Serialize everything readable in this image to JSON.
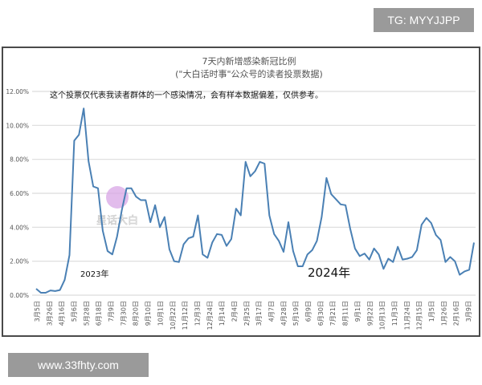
{
  "watermarks": {
    "top_right": "TG: MYYJJPP",
    "bottom_left": "www.33fhty.com",
    "logo_text": "星话大白"
  },
  "chart_data": {
    "type": "line",
    "title": "7天内新增感染新冠比例",
    "subtitle": "(\"大白话时事\"公众号的读者投票数据)",
    "note": "这个投票仅代表我读者群体的一个感染情况，会有样本数据偏差，仅供参考。",
    "annotations": [
      "2023年",
      "2024年"
    ],
    "ylim": [
      0,
      12
    ],
    "y_ticks": [
      "0.00%",
      "2.00%",
      "4.00%",
      "6.00%",
      "8.00%",
      "10.00%",
      "12.00%"
    ],
    "x_ticks": [
      "3月5日",
      "3月26日",
      "4月16日",
      "5月6日",
      "5月28日",
      "6月18日",
      "7月9日",
      "7月30日",
      "8月20日",
      "9月10日",
      "10月1日",
      "10月22日",
      "11月12日",
      "12月3日",
      "12月24日",
      "1月14日",
      "2月4日",
      "2月25日",
      "3月17日",
      "4月7日",
      "4月28日",
      "5月19日",
      "6月9日",
      "6月30日",
      "7月21日",
      "8月11日",
      "9月1日",
      "9月22日",
      "10月13日",
      "11月3日",
      "11月24日",
      "12月15日",
      "1月5日",
      "1月26日",
      "2月16日",
      "3月9日"
    ],
    "grid": true,
    "line_color": "#4a80b4",
    "series": [
      {
        "values": [
          0.38,
          0.14,
          0.14,
          0.28,
          0.24,
          0.3,
          0.9,
          2.36,
          9.1,
          9.45,
          11.0,
          7.9,
          6.4,
          6.3,
          3.8,
          2.6,
          2.4,
          3.45,
          5.0,
          6.3,
          6.3,
          5.8,
          5.6,
          5.6,
          4.3,
          5.3,
          4.0,
          4.6,
          2.7,
          2.0,
          1.95,
          3.0,
          3.35,
          3.45,
          4.7,
          2.4,
          2.2,
          3.1,
          3.6,
          3.55,
          2.9,
          3.3,
          5.1,
          4.7,
          7.85,
          7.0,
          7.3,
          7.85,
          7.75,
          4.7,
          3.6,
          3.2,
          2.55,
          4.3,
          2.6,
          1.7,
          1.7,
          2.4,
          2.65,
          3.2,
          4.6,
          6.9,
          5.95,
          5.65,
          5.35,
          5.3,
          3.9,
          2.75,
          2.3,
          2.45,
          2.1,
          2.75,
          2.4,
          1.55,
          2.15,
          1.95,
          2.85,
          2.1,
          2.15,
          2.25,
          2.65,
          4.15,
          4.55,
          4.25,
          3.55,
          3.25,
          1.95,
          2.25,
          2.0,
          1.2,
          1.4,
          1.5,
          3.1
        ]
      }
    ]
  }
}
